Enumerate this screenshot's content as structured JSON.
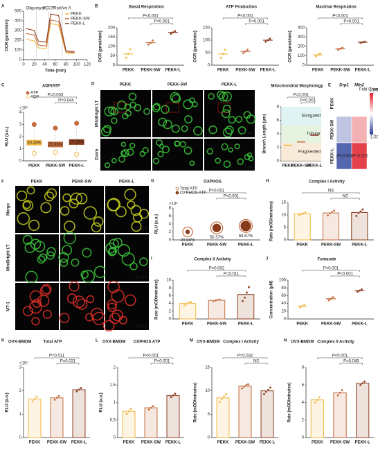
{
  "chart_data": [
    {
      "type": "line",
      "panel": "A",
      "xlabel": "Time (min)",
      "ylabel": "OCR (pmol/min)",
      "x": [
        5,
        13,
        20,
        28,
        36,
        43,
        51,
        58,
        66,
        80,
        88,
        96
      ],
      "xlim": [
        0,
        120
      ],
      "xticks": [
        0,
        20,
        40,
        60,
        80,
        100,
        120
      ],
      "ylim": [
        0,
        500
      ],
      "yticks": [
        0,
        100,
        200,
        300,
        400,
        500
      ],
      "markers": [
        {
          "label": "Oligomycin",
          "x": 24
        },
        {
          "label": "FCCP",
          "x": 47
        },
        {
          "label": "Rot/Ant A",
          "x": 73
        }
      ],
      "series": [
        {
          "name": "PEKK",
          "color": "#f2b844",
          "values": [
            210,
            200,
            195,
            120,
            118,
            115,
            370,
            365,
            355,
            70,
            65,
            62
          ]
        },
        {
          "name": "PEKK-SW",
          "color": "#c46a3c",
          "values": [
            270,
            260,
            255,
            150,
            145,
            140,
            410,
            400,
            395,
            80,
            75,
            72
          ]
        },
        {
          "name": "PEKK-L",
          "color": "#8a3b1c",
          "values": [
            320,
            310,
            300,
            190,
            185,
            180,
            470,
            462,
            455,
            90,
            85,
            80
          ]
        }
      ]
    },
    {
      "type": "dot",
      "panel": "B",
      "title": "Basal Respiration",
      "ylabel": "OCR (pmol/min)",
      "categories": [
        "PEKK",
        "PEKK-SW",
        "PEKK-L"
      ],
      "colors": [
        "#f2b844",
        "#c46a3c",
        "#8a3b1c"
      ],
      "values": [
        60,
        120,
        175
      ],
      "points": [
        [
          40,
          60,
          85
        ],
        [
          110,
          120,
          132
        ],
        [
          168,
          175,
          182
        ]
      ],
      "ylim": [
        0,
        200
      ],
      "yticks": [
        0,
        50,
        100,
        150,
        200
      ],
      "annotations": [
        "P<0.001",
        "P<0.001"
      ]
    },
    {
      "type": "dot",
      "title": "ATP Production",
      "ylabel": "OCR (pmol/min)",
      "categories": [
        "PEKK",
        "PEKK-SW",
        "PEKK-L"
      ],
      "colors": [
        "#f2b844",
        "#c46a3c",
        "#8a3b1c"
      ],
      "values": [
        45,
        55,
        100
      ],
      "points": [
        [
          30,
          45,
          62
        ],
        [
          48,
          55,
          62
        ],
        [
          94,
          100,
          106
        ]
      ],
      "ylim": [
        0,
        150
      ],
      "yticks": [
        0,
        50,
        100,
        150
      ],
      "annotations": [
        "P<0.001",
        "P<0.001"
      ]
    },
    {
      "type": "dot",
      "title": "Maximal Respiration",
      "ylabel": "OCR (pmol/min)",
      "categories": [
        "PEKK",
        "PEKK-SW",
        "PEKK-L"
      ],
      "colors": [
        "#f2b844",
        "#c46a3c",
        "#8a3b1c"
      ],
      "values": [
        110,
        175,
        245
      ],
      "points": [
        [
          95,
          110,
          125
        ],
        [
          165,
          175,
          185
        ],
        [
          240,
          245,
          250
        ]
      ],
      "ylim": [
        0,
        400
      ],
      "yticks": [
        0,
        100,
        200,
        300,
        400
      ],
      "annotations": [
        "P<0.001",
        "P<0.001"
      ]
    },
    {
      "type": "lollipop",
      "panel": "C",
      "title": "ADP/ATP",
      "ylabel": "RLU (a.u.)",
      "multiplier": "×10⁵",
      "categories": [
        "PEKK",
        "PEKK-SW",
        "PEKK-L"
      ],
      "colors": [
        "#f2b844",
        "#c46a3c",
        "#8a3b1c"
      ],
      "series": [
        {
          "name": "ATP",
          "color": "#c46a3c",
          "values": [
            3.0,
            2.7,
            3.1
          ]
        },
        {
          "name": "ADP",
          "color": "#f2b844",
          "values": [
            0.61,
            0.7,
            0.54
          ]
        }
      ],
      "ratios": [
        20.33,
        25.96,
        17.29
      ],
      "ratio_labels": [
        "20.33%",
        "25.96%",
        "17.29%"
      ],
      "ylim": [
        0,
        4
      ],
      "yticks": [
        0,
        1,
        2,
        3,
        4
      ],
      "annotations": [
        "P=0.003",
        "P=0.044"
      ]
    },
    {
      "type": "strip",
      "title": "Mitochondrial Morphology",
      "ylabel": "Branch Length (μm)",
      "categories": [
        "PEKK",
        "PEKK-SW",
        "PEKK-L"
      ],
      "colors": [
        "#f2b844",
        "#c46a3c",
        "#8a3b1c"
      ],
      "values": [
        2.3,
        2.8,
        3.8
      ],
      "zones": [
        "Elongated",
        "Tubular",
        "Fragmented"
      ],
      "ylim": [
        0,
        8
      ],
      "yticks": [
        0,
        2,
        4,
        6,
        8
      ],
      "annotations": [
        "P=0.001",
        "P<0.001"
      ]
    },
    {
      "type": "heatmap",
      "panel": "E",
      "columns": [
        "Drp1",
        "Mfn2"
      ],
      "rows": [
        "PEKK",
        "PEKK-SW",
        "PEKK-L"
      ],
      "values": [
        [
          0,
          0
        ],
        [
          -0.3,
          0.35
        ],
        [
          -0.8,
          0.85
        ]
      ],
      "notes": [
        "↓P<0.001",
        "↑P<0.001"
      ],
      "legend_title": "Fold Change",
      "clim": [
        -1,
        1
      ],
      "cticks": [
        {
          "value": 1,
          "label": "1.00"
        },
        {
          "value": -1,
          "label": "-1.00"
        }
      ]
    },
    {
      "type": "bubble",
      "panel": "G",
      "title": "OXPHOS",
      "ylabel": "RLU (a.u.)",
      "multiplier": "×10⁵",
      "categories": [
        "PEKK",
        "PEKK-SW",
        "PEKK-L"
      ],
      "colors": [
        "#f2b844",
        "#c46a3c",
        "#8a3b1c"
      ],
      "series": [
        {
          "name": "Total ATP",
          "color": "#c46a3c",
          "values": [
            2.0,
            3.0,
            3.5
          ]
        },
        {
          "name": "OXPHOS ATP",
          "color": "#8a3b1c",
          "values": [
            0.42,
            1.51,
            2.26
          ]
        }
      ],
      "ratios": [
        20.88,
        50.37,
        64.67
      ],
      "ratio_labels": [
        "20.88%",
        "50.37%",
        "64.67%"
      ],
      "ylim": [
        0,
        8
      ],
      "yticks": [
        0,
        2,
        4,
        6,
        8
      ],
      "annotations": [
        "P<0.001",
        "P<0.001"
      ]
    },
    {
      "type": "bar",
      "panel": "H",
      "title": "Complex I Activity",
      "ylabel": "Rate (mOD/minutes)",
      "categories": [
        "PEKK",
        "PEKK-SW",
        "PEKK-L"
      ],
      "colors": [
        "#f2b844",
        "#c46a3c",
        "#8a3b1c"
      ],
      "values": [
        10.5,
        10.8,
        11.0
      ],
      "points": [
        [
          10.0,
          10.4,
          10.6,
          11.0
        ],
        [
          9.8,
          10.6,
          11.1,
          11.7
        ],
        [
          9.6,
          10.8,
          11.4,
          12.2
        ]
      ],
      "ylim": [
        0,
        15
      ],
      "yticks": [
        0,
        5,
        10,
        15
      ],
      "annotations": [
        "NS",
        "NS"
      ]
    },
    {
      "type": "bar",
      "panel": "I",
      "title": "Complex II Activity",
      "ylabel": "Rate (mOD/minutes)",
      "categories": [
        "PEKK",
        "PEKK-SW",
        "PEKK-L"
      ],
      "colors": [
        "#f2b844",
        "#c46a3c",
        "#8a3b1c"
      ],
      "values": [
        4.0,
        4.8,
        6.3
      ],
      "points": [
        [
          3.5,
          3.9,
          4.2,
          4.4
        ],
        [
          4.6,
          4.8,
          4.9,
          5.0
        ],
        [
          4.6,
          5.5,
          6.8,
          8.2
        ]
      ],
      "ylim": [
        0,
        10
      ],
      "yticks": [
        0,
        2,
        4,
        6,
        8,
        10
      ],
      "annotations": [
        "P=0.002",
        "P=0.011"
      ]
    },
    {
      "type": "dot",
      "panel": "J",
      "title": "Fumarate",
      "ylabel": "Concentration (μM)",
      "categories": [
        "PEKK",
        "PEKK-SW",
        "PEKK-L"
      ],
      "colors": [
        "#f2b844",
        "#c46a3c",
        "#8a3b1c"
      ],
      "values": [
        33,
        52,
        73
      ],
      "points": [
        [
          30,
          33,
          36
        ],
        [
          48,
          52,
          56
        ],
        [
          70,
          73,
          76
        ]
      ],
      "ylim": [
        0,
        100
      ],
      "yticks": [
        0,
        20,
        40,
        60,
        80,
        100
      ],
      "annotations": [
        "P<0.001",
        "P<0.001"
      ]
    },
    {
      "type": "bar",
      "panel": "K",
      "subtitle": "OVX-BMDM",
      "title": "Total ATP",
      "ylabel": "RLU (a.u.)",
      "multiplier": "×10⁵",
      "categories": [
        "PEKK",
        "PEKK-SW",
        "PEKK-L"
      ],
      "colors": [
        "#f2b844",
        "#c46a3c",
        "#8a3b1c"
      ],
      "values": [
        1.65,
        1.7,
        2.05
      ],
      "points": [
        [
          1.55,
          1.65,
          1.75
        ],
        [
          1.62,
          1.7,
          1.78
        ],
        [
          1.98,
          2.05,
          2.12
        ]
      ],
      "ylim": [
        0,
        3
      ],
      "yticks": [
        0,
        1,
        2,
        3
      ],
      "annotations": [
        "P=0.011",
        "P=0.031"
      ]
    },
    {
      "type": "bar",
      "panel": "L",
      "subtitle": "OVX-BMDM",
      "title": "OXPHOS ATP",
      "ylabel": "RLU (a.u.)",
      "categories": [
        "PEKK",
        "PEKK-SW",
        "PEKK-L"
      ],
      "colors": [
        "#f2b844",
        "#c46a3c",
        "#8a3b1c"
      ],
      "values": [
        0.75,
        0.85,
        1.2
      ],
      "points": [
        [
          0.68,
          0.75,
          0.82
        ],
        [
          0.8,
          0.85,
          0.9
        ],
        [
          1.15,
          1.2,
          1.25
        ]
      ],
      "ylim": [
        0,
        2
      ],
      "yticks": [
        0,
        0.5,
        1,
        1.5,
        2
      ],
      "annotations": [
        "P<0.001",
        "P<0.001"
      ]
    },
    {
      "type": "bar",
      "panel": "M",
      "subtitle": "OVX-BMDM",
      "title": "Complex I Activity",
      "ylabel": "Rate (mOD/minutes)",
      "categories": [
        "PEKK",
        "PEKK-SW",
        "PEKK-L"
      ],
      "colors": [
        "#f2b844",
        "#c46a3c",
        "#8a3b1c"
      ],
      "values": [
        8.5,
        11,
        10
      ],
      "points": [
        [
          7.6,
          8.3,
          8.8,
          9.3
        ],
        [
          10.5,
          10.9,
          11.2,
          11.4
        ],
        [
          9.3,
          9.8,
          10.2,
          10.7
        ]
      ],
      "ylim": [
        0,
        15
      ],
      "yticks": [
        0,
        5,
        10,
        15
      ],
      "annotations": [
        "P=0.032",
        "NS"
      ]
    },
    {
      "type": "bar",
      "panel": "N",
      "subtitle": "OVX-BMDM",
      "title": "Complex II Activity",
      "ylabel": "Rate (mOD/minutes)",
      "categories": [
        "PEKK",
        "PEKK-SW",
        "PEKK-L"
      ],
      "colors": [
        "#f2b844",
        "#c46a3c",
        "#8a3b1c"
      ],
      "values": [
        4.3,
        5.1,
        6.2
      ],
      "points": [
        [
          4.0,
          4.3,
          4.6
        ],
        [
          4.8,
          5.1,
          5.4
        ],
        [
          6.0,
          6.2,
          6.4
        ]
      ],
      "ylim": [
        0,
        8
      ],
      "yticks": [
        0,
        2,
        4,
        6,
        8
      ],
      "annotations": [
        "P<0.001",
        "P=0.045"
      ]
    }
  ],
  "images": {
    "D": {
      "panel": "D",
      "columns": [
        "PEKK",
        "PEKK-SW",
        "PEKK-L"
      ],
      "rows": [
        "MitoBright LT",
        "Zoom"
      ],
      "scales": [
        "10 μm",
        "2 μm"
      ]
    },
    "F": {
      "panel": "F",
      "columns": [
        "PEKK",
        "PEKK-SW",
        "PEKK-L"
      ],
      "rows": [
        "Merge",
        "MitoBright LT",
        "MT-1"
      ],
      "scale": "25 μm"
    }
  }
}
